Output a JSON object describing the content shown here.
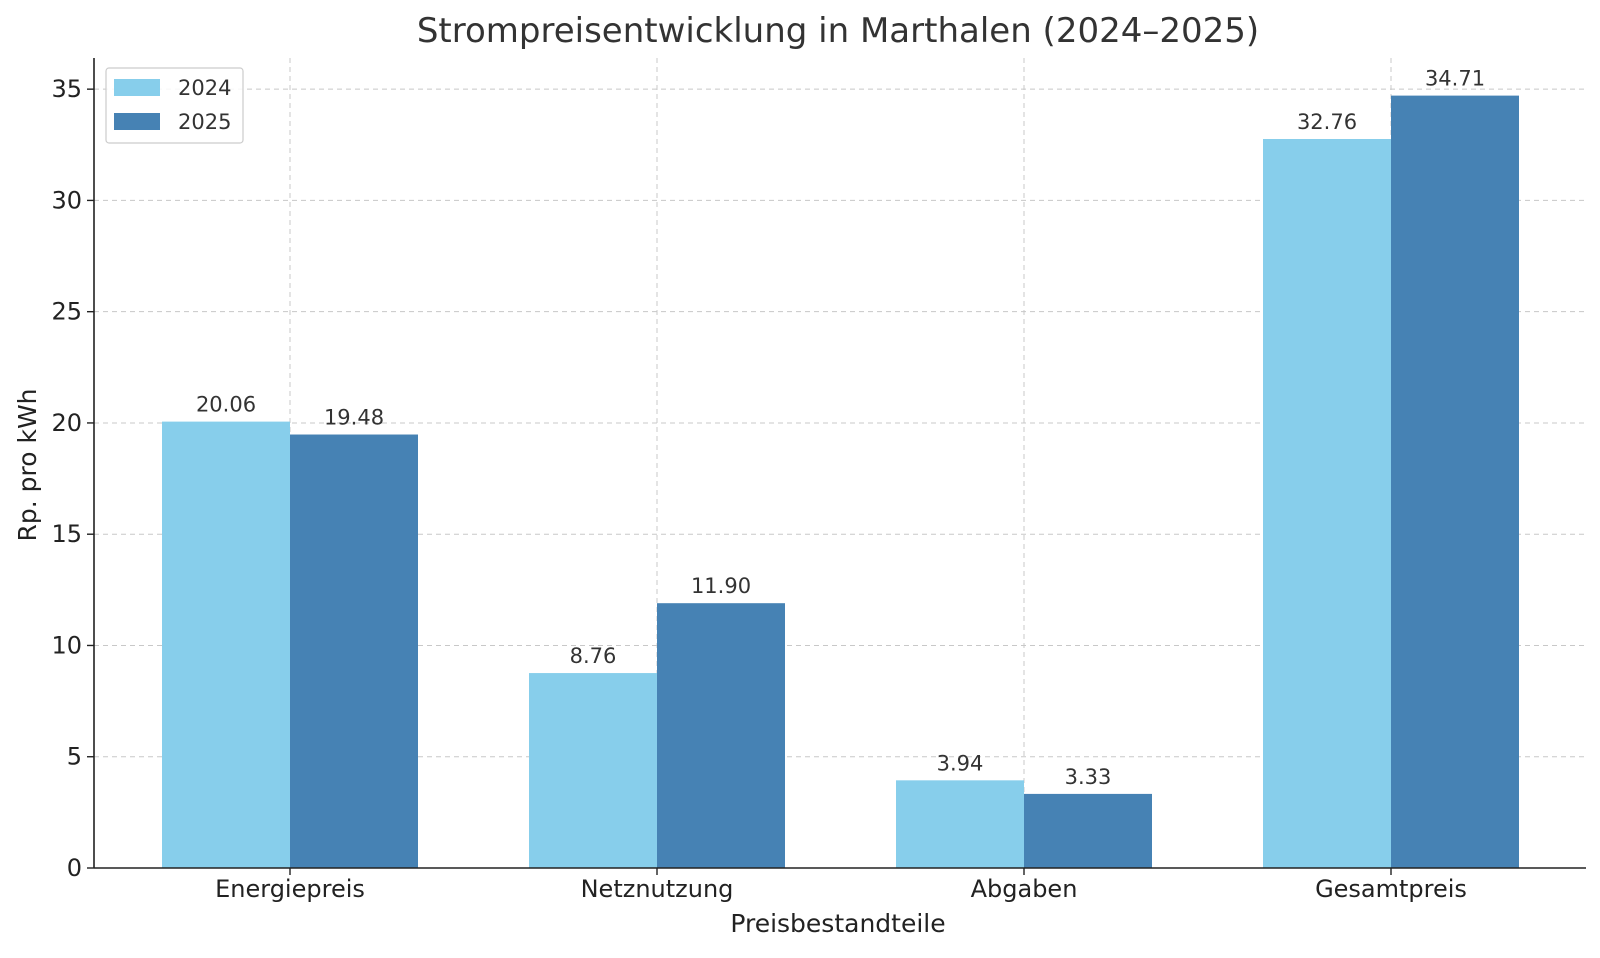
{
  "chart_data": {
    "type": "bar",
    "title": "Strompreisentwicklung in Marthalen (2024–2025)",
    "xlabel": "Preisbestandteile",
    "ylabel": "Rp. pro kWh",
    "categories": [
      "Energiepreis",
      "Netznutzung",
      "Abgaben",
      "Gesamtpreis"
    ],
    "series": [
      {
        "name": "2024",
        "values": [
          20.06,
          8.76,
          3.94,
          32.76
        ],
        "labels": [
          "20.06",
          "8.76",
          "3.94",
          "32.76"
        ],
        "color": "#87CEEB"
      },
      {
        "name": "2025",
        "values": [
          19.48,
          11.9,
          3.33,
          34.71
        ],
        "labels": [
          "19.48",
          "11.90",
          "3.33",
          "34.71"
        ],
        "color": "#4682B4"
      }
    ],
    "ylim": [
      0,
      36.4
    ],
    "yticks": [
      0,
      5,
      10,
      15,
      20,
      25,
      30,
      35
    ],
    "grid": true,
    "legend_position": "top-left"
  }
}
